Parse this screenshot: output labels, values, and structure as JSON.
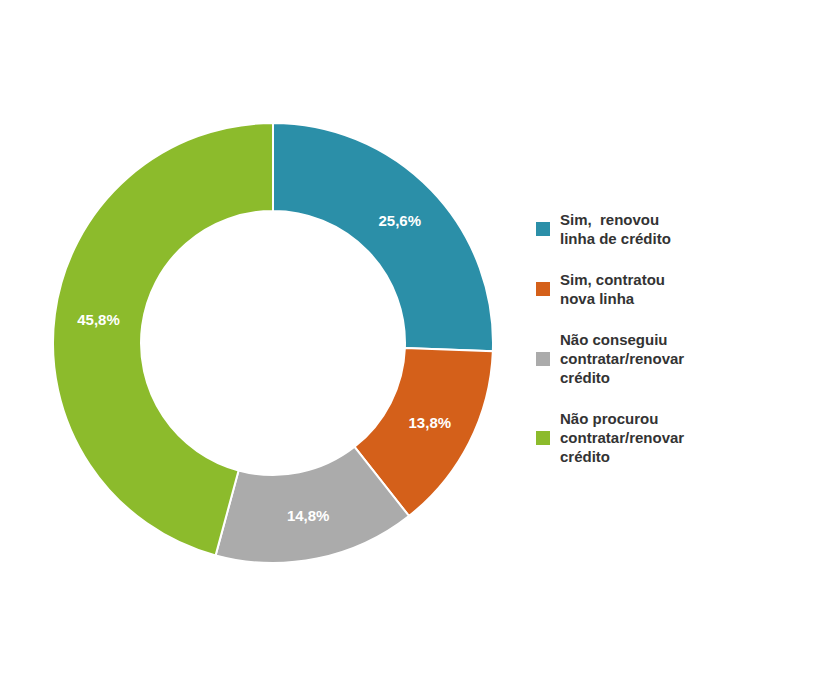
{
  "chart_data": {
    "type": "donut",
    "categories": [
      "Sim,  renovou\nlinha de crédito",
      "Sim, contratou\nnova linha",
      "Não conseguiu\ncontratar/renovar\ncrédito",
      "Não procurou\ncontratar/renovar\ncrédito"
    ],
    "values": [
      25.6,
      13.8,
      14.8,
      45.8
    ],
    "value_labels": [
      "25,6%",
      "13,8%",
      "14,8%",
      "45,8%"
    ],
    "colors": [
      "#2B8FA8",
      "#D4601A",
      "#ABABAB",
      "#8CBB2C"
    ],
    "data_labels": true,
    "legend": "right"
  }
}
